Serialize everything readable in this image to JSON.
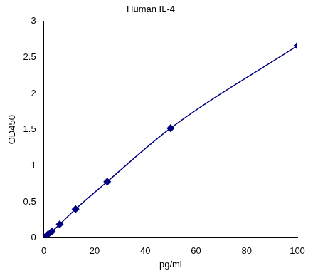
{
  "chart_data": {
    "type": "line",
    "title": "Human IL-4",
    "xlabel": "pg/ml",
    "ylabel": "OD450",
    "x": [
      0,
      1.56,
      3.125,
      6.25,
      12.5,
      25,
      50,
      100
    ],
    "values": [
      0.01,
      0.05,
      0.09,
      0.19,
      0.4,
      0.78,
      1.52,
      2.66
    ],
    "color": "#000080",
    "marker": "diamond",
    "line_style": "solid",
    "xlim": [
      0,
      100
    ],
    "xticks": [
      0,
      20,
      40,
      60,
      80,
      100
    ],
    "ylim": [
      0,
      3
    ],
    "yticks": [
      0,
      0.5,
      1,
      1.5,
      2,
      2.5,
      3
    ],
    "grid": false
  }
}
